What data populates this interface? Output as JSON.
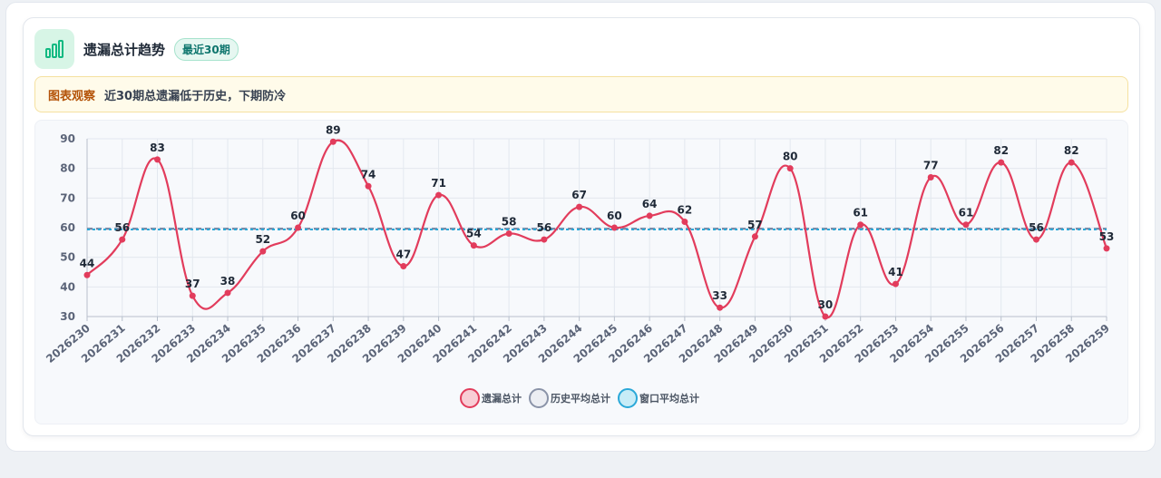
{
  "header": {
    "title": "遗漏总计趋势",
    "badge": "最近30期",
    "icon": "bar-chart-icon"
  },
  "notice": {
    "label": "图表观察",
    "text": "近30期总遗漏低于历史，下期防冷"
  },
  "colors": {
    "series_main": "#e23c5c",
    "series_history": "#6b7a99",
    "series_window": "#2aa8d8",
    "accent": "#10b981"
  },
  "chart_data": {
    "type": "line",
    "categories": [
      "2026230",
      "2026231",
      "2026232",
      "2026233",
      "2026234",
      "2026235",
      "2026236",
      "2026237",
      "2026238",
      "2026239",
      "2026240",
      "2026241",
      "2026242",
      "2026243",
      "2026244",
      "2026245",
      "2026246",
      "2026247",
      "2026248",
      "2026249",
      "2026250",
      "2026251",
      "2026252",
      "2026253",
      "2026254",
      "2026255",
      "2026256",
      "2026257",
      "2026258",
      "2026259"
    ],
    "series": [
      {
        "name": "遗漏总计",
        "values": [
          44,
          56,
          83,
          37,
          38,
          52,
          60,
          89,
          74,
          47,
          71,
          54,
          58,
          56,
          67,
          60,
          64,
          62,
          33,
          57,
          80,
          30,
          61,
          41,
          77,
          61,
          82,
          56,
          82,
          53
        ]
      },
      {
        "name": "历史平均总计",
        "values": [
          59.6,
          59.6,
          59.6,
          59.6,
          59.6,
          59.6,
          59.6,
          59.6,
          59.6,
          59.6,
          59.6,
          59.6,
          59.6,
          59.6,
          59.6,
          59.6,
          59.6,
          59.6,
          59.6,
          59.6,
          59.6,
          59.6,
          59.6,
          59.6,
          59.6,
          59.6,
          59.6,
          59.6,
          59.6,
          59.6
        ]
      },
      {
        "name": "窗口平均总计",
        "values": [
          59.4,
          59.4,
          59.4,
          59.4,
          59.4,
          59.4,
          59.4,
          59.4,
          59.4,
          59.4,
          59.4,
          59.4,
          59.4,
          59.4,
          59.4,
          59.4,
          59.4,
          59.4,
          59.4,
          59.4,
          59.4,
          59.4,
          59.4,
          59.4,
          59.4,
          59.4,
          59.4,
          59.4,
          59.4,
          59.4
        ]
      }
    ],
    "y_ticks": [
      30,
      40,
      50,
      60,
      70,
      80,
      90
    ],
    "ylim": [
      30,
      90
    ],
    "grid": true,
    "legend": "bottom-center"
  }
}
